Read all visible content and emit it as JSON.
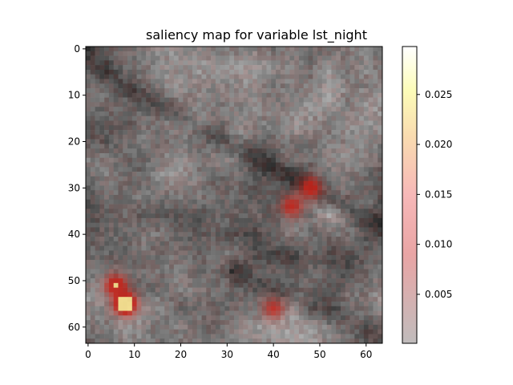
{
  "chart_data": {
    "type": "heatmap",
    "title": "saliency map for variable lst_night",
    "xlabel": "",
    "ylabel": "",
    "grid_size": [
      64,
      64
    ],
    "xlim": [
      0,
      63
    ],
    "ylim": [
      63,
      0
    ],
    "x_ticks": [
      "0",
      "10",
      "20",
      "30",
      "40",
      "50",
      "60"
    ],
    "y_ticks": [
      "0",
      "10",
      "20",
      "30",
      "40",
      "50",
      "60"
    ],
    "colorbar": {
      "ticks": [
        "0.005",
        "0.010",
        "0.015",
        "0.020",
        "0.025"
      ],
      "tick_values": [
        0.005,
        0.01,
        0.015,
        0.02,
        0.025
      ],
      "range": [
        0.0001,
        0.0298
      ],
      "colormap": "hot_r (alpha-blended over grayscale)"
    },
    "hotspots": [
      {
        "x": 48,
        "y": 30,
        "value": 0.012,
        "label": ""
      },
      {
        "x": 44,
        "y": 34,
        "value": 0.01,
        "label": ""
      },
      {
        "x": 8,
        "y": 55,
        "value": 0.022,
        "label": ""
      },
      {
        "x": 6,
        "y": 51,
        "value": 0.014,
        "label": ""
      },
      {
        "x": 40,
        "y": 56,
        "value": 0.009,
        "label": ""
      }
    ]
  }
}
